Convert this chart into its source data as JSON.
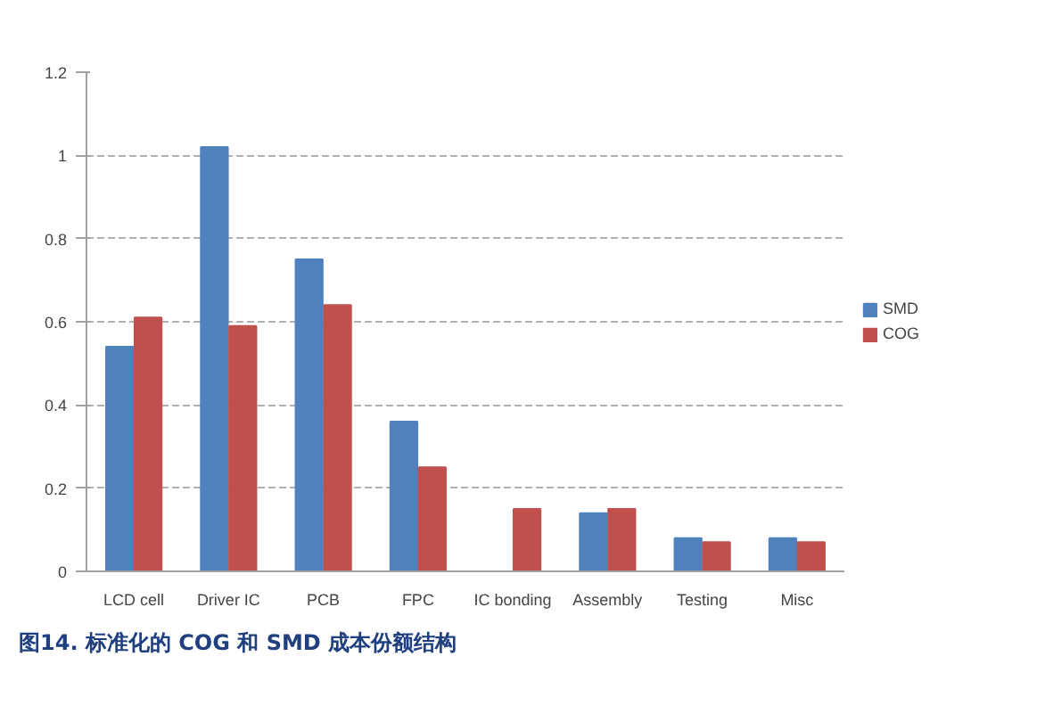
{
  "chart_data": {
    "type": "bar",
    "categories": [
      "LCD cell",
      "Driver IC",
      "PCB",
      "FPC",
      "IC bonding",
      "Assembly",
      "Testing",
      "Misc"
    ],
    "series": [
      {
        "name": "SMD",
        "color": "#4f81bd",
        "values": [
          0.54,
          1.02,
          0.75,
          0.36,
          0.0,
          0.14,
          0.08,
          0.08
        ]
      },
      {
        "name": "COG",
        "color": "#c0504d",
        "values": [
          0.61,
          0.59,
          0.64,
          0.25,
          0.15,
          0.15,
          0.07,
          0.07
        ]
      }
    ],
    "ylim": [
      0,
      1.2
    ],
    "yticks": [
      0,
      0.2,
      0.4,
      0.6,
      0.8,
      1,
      1.2
    ],
    "grid": "y",
    "legend": "right",
    "annotations": [
      "图14. 标准化的 COG 和 SMD 成本份额结构"
    ]
  }
}
